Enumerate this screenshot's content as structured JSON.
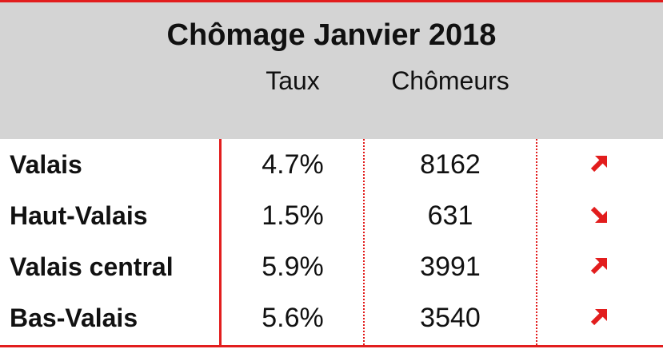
{
  "title": "Chômage Janvier 2018",
  "columns": {
    "rate": "Taux",
    "count": "Chômeurs"
  },
  "rows": [
    {
      "region": "Valais",
      "rate": "4.7%",
      "count": "8162",
      "trend": "up-right-arrow-icon"
    },
    {
      "region": "Haut-Valais",
      "rate": "1.5%",
      "count": "631",
      "trend": "down-right-arrow-icon"
    },
    {
      "region": "Valais central",
      "rate": "5.9%",
      "count": "3991",
      "trend": "up-right-arrow-icon"
    },
    {
      "region": "Bas-Valais",
      "rate": "5.6%",
      "count": "3540",
      "trend": "up-right-arrow-icon"
    }
  ],
  "colors": {
    "accent": "#e21d1d",
    "header_bg": "#d4d4d4",
    "text": "#111111"
  }
}
